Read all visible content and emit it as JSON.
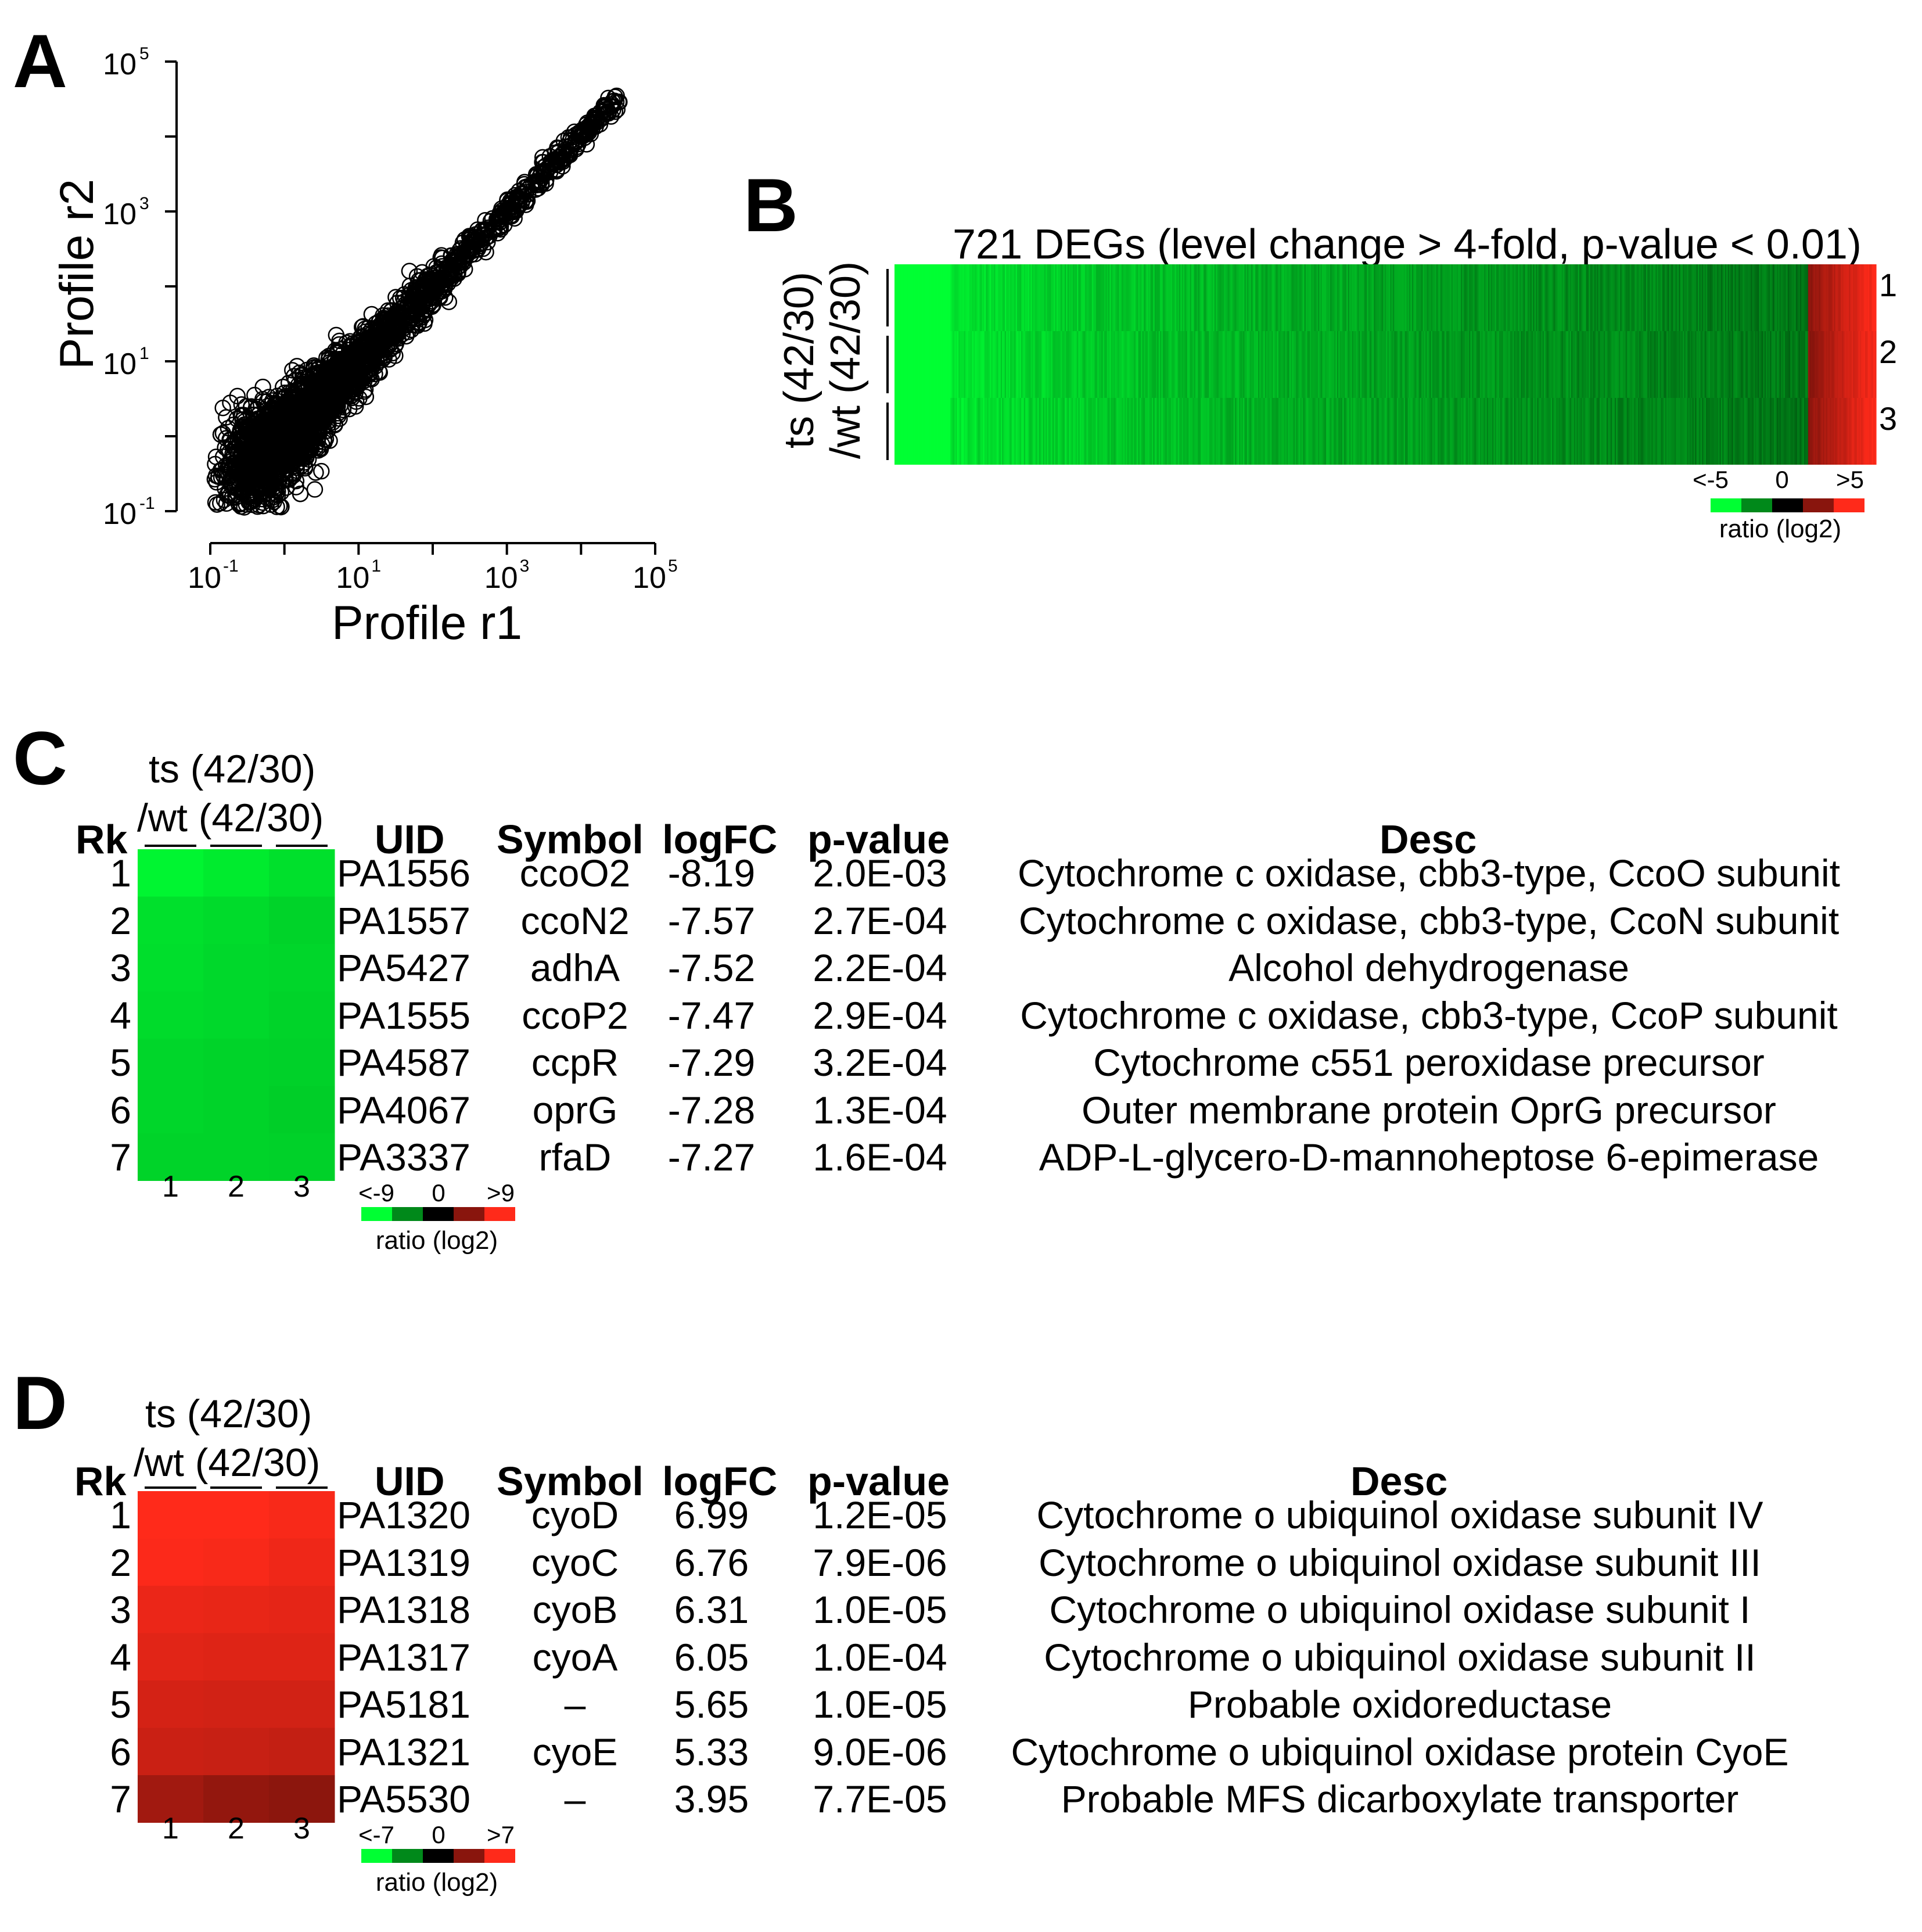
{
  "panel_letters": {
    "a": "A",
    "b": "B",
    "c": "C",
    "d": "D"
  },
  "colors": {
    "green": "#00ff33",
    "black": "#000000",
    "red": "#ff2a1a"
  },
  "chart_data": [
    {
      "type": "scatter",
      "panel": "A",
      "xlabel": "Profile r1",
      "ylabel": "Profile r2",
      "xscale": "log",
      "yscale": "log",
      "xlim": [
        0.1,
        100000
      ],
      "ylim": [
        0.1,
        100000
      ],
      "tick_base": "10",
      "xtick_exponents": [
        "-1",
        "1",
        "3",
        "5"
      ],
      "ytick_exponents": [
        "-1",
        "1",
        "3",
        "5"
      ],
      "points_description_free": true,
      "max_point": [
        30000,
        15000
      ]
    },
    {
      "type": "heatmap",
      "panel": "B",
      "title": "721 DEGs (level change > 4-fold, p-value < 0.01)",
      "ylabel_line1": "ts (42/30)",
      "ylabel_line2": "/wt (42/30)",
      "rows": [
        "1",
        "2",
        "3"
      ],
      "n_columns": 721,
      "scale_min_label": "<-5",
      "scale_mid_label": "0",
      "scale_max_label": ">5",
      "scale_title": "ratio (log2)",
      "down_fraction": 0.93
    },
    {
      "type": "table",
      "panel": "C",
      "group_label_line1": "ts (42/30)",
      "group_label_line2": "/wt (42/30)",
      "columns": [
        "Rk",
        "UID",
        "Symbol",
        "logFC",
        "p-value",
        "Desc"
      ],
      "heat_columns": [
        "1",
        "2",
        "3"
      ],
      "scale_min_label": "<-9",
      "scale_mid_label": "0",
      "scale_max_label": ">9",
      "scale_title": "ratio (log2)",
      "scale_max": 9,
      "rows": [
        {
          "rk": "1",
          "uid": "PA1556",
          "symbol": "ccoO2",
          "logfc": "-8.19",
          "pvalue": "2.0E-03",
          "desc": "Cytochrome c oxidase, cbb3-type, CcoO subunit",
          "heat": [
            -8.6,
            -8.2,
            -7.8
          ]
        },
        {
          "rk": "2",
          "uid": "PA1557",
          "symbol": "ccoN2",
          "logfc": "-7.57",
          "pvalue": "2.7E-04",
          "desc": "Cytochrome c oxidase, cbb3-type, CcoN subunit",
          "heat": [
            -7.8,
            -7.6,
            -7.3
          ]
        },
        {
          "rk": "3",
          "uid": "PA5427",
          "symbol": "adhA",
          "logfc": "-7.52",
          "pvalue": "2.2E-04",
          "desc": "Alcohol dehydrogenase",
          "heat": [
            -7.7,
            -7.5,
            -7.4
          ]
        },
        {
          "rk": "4",
          "uid": "PA1555",
          "symbol": "ccoP2",
          "logfc": "-7.47",
          "pvalue": "2.9E-04",
          "desc": "Cytochrome c oxidase, cbb3-type, CcoP subunit",
          "heat": [
            -7.6,
            -7.5,
            -7.3
          ]
        },
        {
          "rk": "5",
          "uid": "PA4587",
          "symbol": "ccpR",
          "logfc": "-7.29",
          "pvalue": "3.2E-04",
          "desc": "Cytochrome c551 peroxidase precursor",
          "heat": [
            -7.4,
            -7.3,
            -7.2
          ]
        },
        {
          "rk": "6",
          "uid": "PA4067",
          "symbol": "oprG",
          "logfc": "-7.28",
          "pvalue": "1.3E-04",
          "desc": "Outer membrane protein OprG precursor",
          "heat": [
            -7.4,
            -7.3,
            -7.1
          ]
        },
        {
          "rk": "7",
          "uid": "PA3337",
          "symbol": "rfaD",
          "logfc": "-7.27",
          "pvalue": "1.6E-04",
          "desc": "ADP-L-glycero-D-mannoheptose 6-epimerase",
          "heat": [
            -7.3,
            -7.3,
            -7.2
          ]
        }
      ]
    },
    {
      "type": "table",
      "panel": "D",
      "group_label_line1": "ts (42/30)",
      "group_label_line2": "/wt (42/30)",
      "columns": [
        "Rk",
        "UID",
        "Symbol",
        "logFC",
        "p-value",
        "Desc"
      ],
      "heat_columns": [
        "1",
        "2",
        "3"
      ],
      "scale_min_label": "<-7",
      "scale_mid_label": "0",
      "scale_max_label": ">7",
      "scale_title": "ratio (log2)",
      "scale_max": 7,
      "rows": [
        {
          "rk": "1",
          "uid": "PA1320",
          "symbol": "cyoD",
          "logfc": "6.99",
          "pvalue": "1.2E-05",
          "desc": "Cytochrome o ubiquinol oxidase subunit IV",
          "heat": [
            7.0,
            7.0,
            6.8
          ]
        },
        {
          "rk": "2",
          "uid": "PA1319",
          "symbol": "cyoC",
          "logfc": "6.76",
          "pvalue": "7.9E-06",
          "desc": "Cytochrome o ubiquinol oxidase subunit III",
          "heat": [
            6.9,
            6.8,
            6.5
          ]
        },
        {
          "rk": "3",
          "uid": "PA1318",
          "symbol": "cyoB",
          "logfc": "6.31",
          "pvalue": "1.0E-05",
          "desc": "Cytochrome o ubiquinol oxidase subunit I",
          "heat": [
            6.4,
            6.3,
            6.2
          ]
        },
        {
          "rk": "4",
          "uid": "PA1317",
          "symbol": "cyoA",
          "logfc": "6.05",
          "pvalue": "1.0E-04",
          "desc": "Cytochrome o ubiquinol oxidase subunit II",
          "heat": [
            6.1,
            6.0,
            6.0
          ]
        },
        {
          "rk": "5",
          "uid": "PA5181",
          "symbol": "–",
          "logfc": "5.65",
          "pvalue": "1.0E-05",
          "desc": "Probable oxidoreductase",
          "heat": [
            5.7,
            5.6,
            5.6
          ]
        },
        {
          "rk": "6",
          "uid": "PA1321",
          "symbol": "cyoE",
          "logfc": "5.33",
          "pvalue": "9.0E-06",
          "desc": "Cytochrome o ubiquinol oxidase protein CyoE",
          "heat": [
            5.4,
            5.3,
            5.2
          ]
        },
        {
          "rk": "7",
          "uid": "PA5530",
          "symbol": "–",
          "logfc": "3.95",
          "pvalue": "7.7E-05",
          "desc": "Probable MFS dicarboxylate transporter",
          "heat": [
            4.2,
            3.8,
            3.6
          ]
        }
      ]
    }
  ]
}
